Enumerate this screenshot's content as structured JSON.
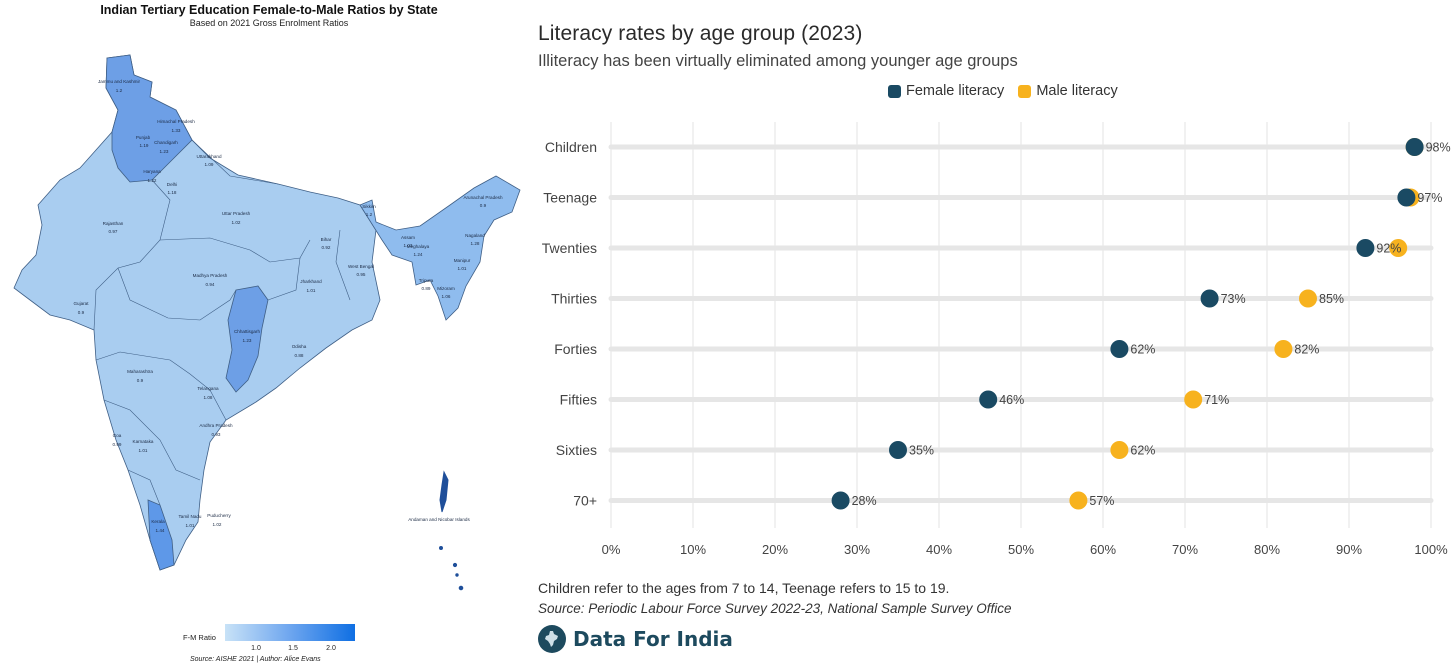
{
  "map": {
    "title": "Indian Tertiary Education Female-to-Male Ratios by State",
    "subtitle": "Based on 2021 Gross Enrolment Ratios",
    "legend_label": "F-M Ratio",
    "legend_ticks": [
      "1.0",
      "1.5",
      "2.0"
    ],
    "source": "Source: AISHE 2021 | Author: Alice Evans",
    "colors": {
      "low": "#a9cdf0",
      "mid": "#7fb1ec",
      "high": "#5e98e8",
      "border": "#3f5f86"
    },
    "states": [
      {
        "name": "Jammu and Kashmir",
        "value": "1.2"
      },
      {
        "name": "Himachal Pradesh",
        "value": "1.33"
      },
      {
        "name": "Punjab",
        "value": "1.19"
      },
      {
        "name": "Chandigarh",
        "value": "1.23"
      },
      {
        "name": "Uttarakhand",
        "value": "1.09"
      },
      {
        "name": "Haryana",
        "value": "1.22"
      },
      {
        "name": "Delhi",
        "value": "1.18"
      },
      {
        "name": "Rajasthan",
        "value": "0.97"
      },
      {
        "name": "Uttar Pradesh",
        "value": "1.02"
      },
      {
        "name": "Sikkim",
        "value": "1.2"
      },
      {
        "name": "Arunachal Pradesh",
        "value": "0.9"
      },
      {
        "name": "Bihar",
        "value": "0.92"
      },
      {
        "name": "Assam",
        "value": "1.03"
      },
      {
        "name": "Meghalaya",
        "value": "1.24"
      },
      {
        "name": "Nagaland",
        "value": "1.28"
      },
      {
        "name": "West Bengal",
        "value": "0.95"
      },
      {
        "name": "Manipur",
        "value": "1.01"
      },
      {
        "name": "Madhya Pradesh",
        "value": "0.94"
      },
      {
        "name": "Jharkhand",
        "value": "1.01"
      },
      {
        "name": "Tripura",
        "value": "0.89"
      },
      {
        "name": "Mizoram",
        "value": "1.06"
      },
      {
        "name": "Gujarat",
        "value": "0.9"
      },
      {
        "name": "Chhattisgarh",
        "value": "1.23"
      },
      {
        "name": "Odisha",
        "value": "0.88"
      },
      {
        "name": "Maharashtra",
        "value": "0.9"
      },
      {
        "name": "Telangana",
        "value": "1.08"
      },
      {
        "name": "Andhra Pradesh",
        "value": "0.93"
      },
      {
        "name": "Goa",
        "value": "0.99"
      },
      {
        "name": "Karnataka",
        "value": "1.01"
      },
      {
        "name": "Tamil Nadu",
        "value": "1.01"
      },
      {
        "name": "Puducherry",
        "value": "1.02"
      },
      {
        "name": "Kerala",
        "value": "1.44"
      },
      {
        "name": "Andaman and Nicobar Islands",
        "value": ""
      }
    ]
  },
  "chart_title": "Literacy rates by age group (2023)",
  "chart_subtitle": "Illiteracy has been virtually eliminated among younger age groups",
  "footnote": "Children refer to the ages from 7 to 14, Teenage refers to 15 to 19.",
  "source": "Source: Periodic Labour Force Survey 2022-23, National Sample Survey Office",
  "brand": "Data For India",
  "chart_data": {
    "type": "scatter",
    "subtype": "dumbbell",
    "categories": [
      "Children",
      "Teenage",
      "Twenties",
      "Thirties",
      "Forties",
      "Fifties",
      "Sixties",
      "70+"
    ],
    "series": [
      {
        "name": "Female literacy",
        "color": "#1a4a63",
        "values": [
          98,
          97,
          92,
          73,
          62,
          46,
          35,
          28
        ],
        "labels": [
          "98%",
          "97%",
          "92%",
          "73%",
          "62%",
          "46%",
          "35%",
          "28%"
        ]
      },
      {
        "name": "Male literacy",
        "color": "#f7b21e",
        "values": [
          98,
          97.5,
          96,
          85,
          82,
          71,
          62,
          57
        ],
        "labels": [
          "",
          "",
          "",
          "85%",
          "82%",
          "71%",
          "62%",
          "57%"
        ]
      }
    ],
    "xlim": [
      0,
      100
    ],
    "xticks": [
      "0%",
      "10%",
      "20%",
      "30%",
      "40%",
      "50%",
      "60%",
      "70%",
      "80%",
      "90%",
      "100%"
    ],
    "grid": true,
    "legend_position": "top-right"
  }
}
